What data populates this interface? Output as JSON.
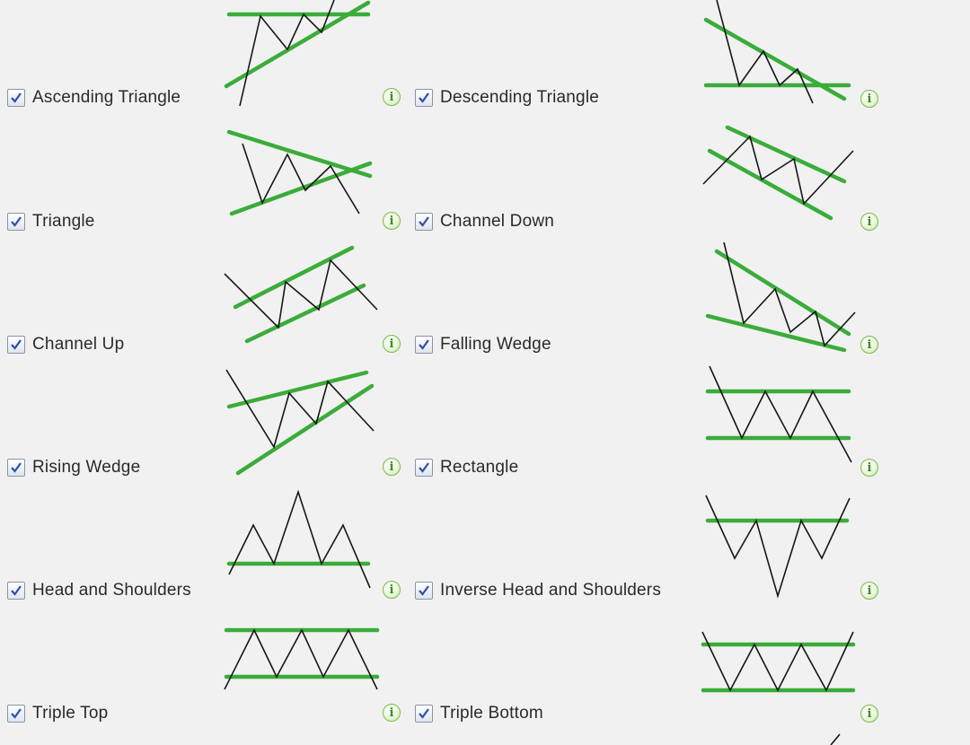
{
  "accent_green": "#3aac3a",
  "info_icon_glyph": "i",
  "left_column": [
    {
      "label": "Ascending Triangle",
      "checked": true
    },
    {
      "label": "Triangle",
      "checked": true
    },
    {
      "label": "Channel Up",
      "checked": true
    },
    {
      "label": "Rising Wedge",
      "checked": true
    },
    {
      "label": "Head and Shoulders",
      "checked": true
    },
    {
      "label": "Triple Top",
      "checked": true
    }
  ],
  "right_column": [
    {
      "label": "Descending Triangle",
      "checked": true
    },
    {
      "label": "Channel Down",
      "checked": true
    },
    {
      "label": "Falling Wedge",
      "checked": true
    },
    {
      "label": "Rectangle",
      "checked": true
    },
    {
      "label": "Inverse Head and Shoulders",
      "checked": true
    },
    {
      "label": "Triple Bottom",
      "checked": true
    }
  ]
}
